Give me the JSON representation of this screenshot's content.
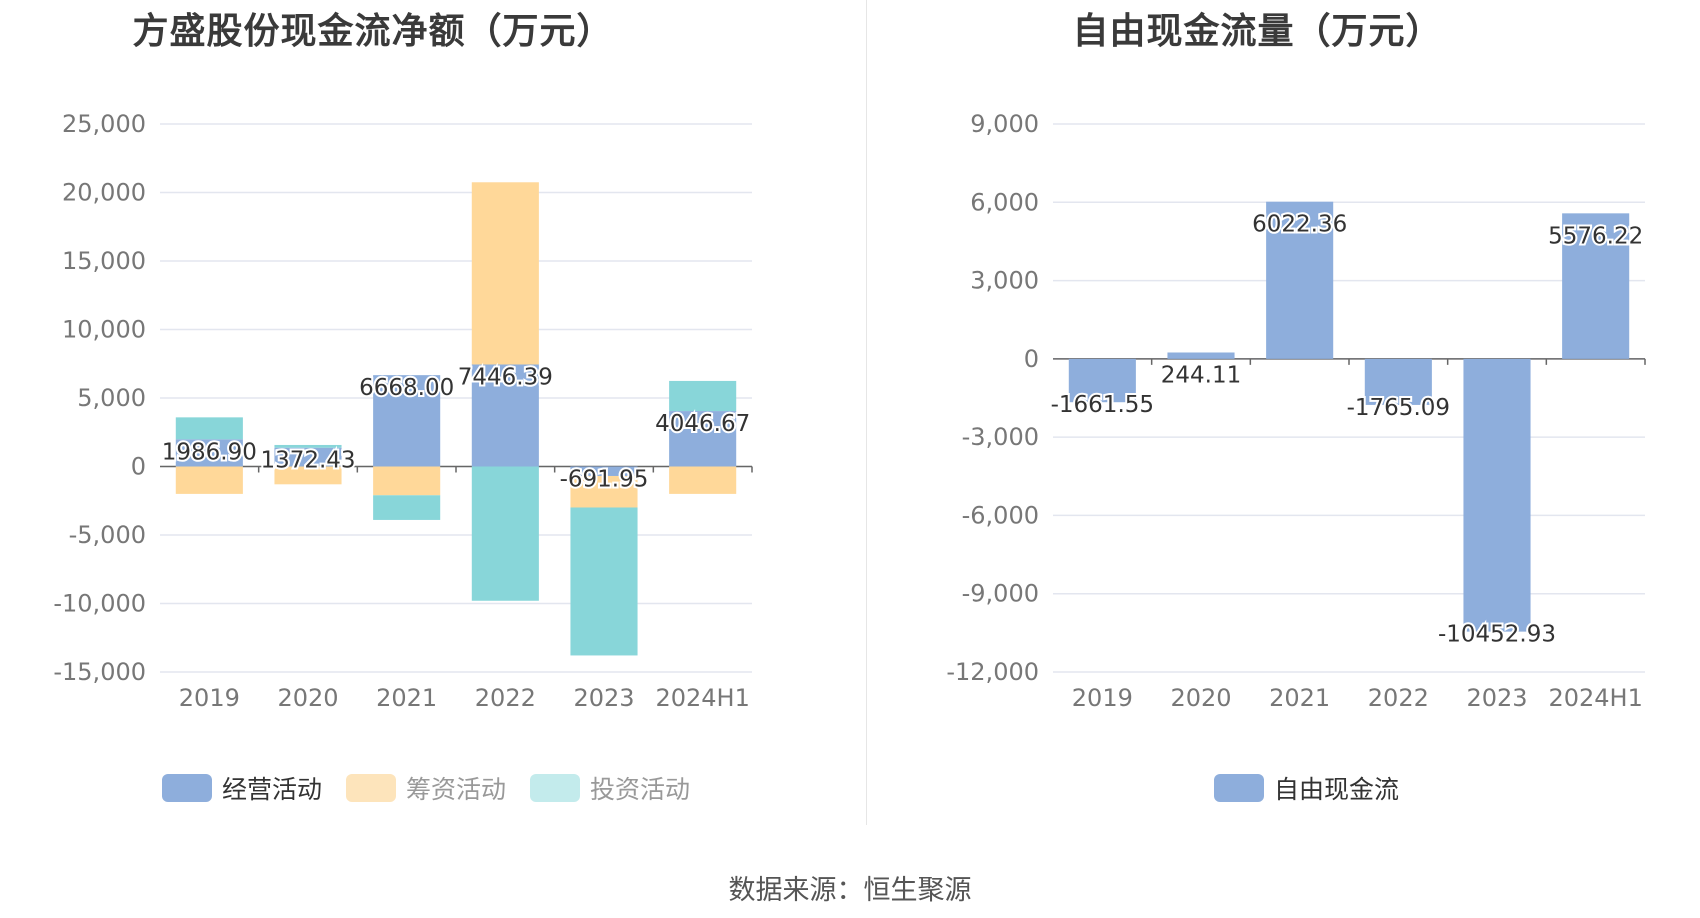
{
  "source_label": "数据来源：恒生聚源",
  "colors": {
    "operating": "#8eaedc",
    "financing": "#ffd899",
    "investing": "#88d6d9",
    "investing_legend": "#c3ebec",
    "financing_legend": "#fde4bb",
    "fcf": "#8eaedc",
    "grid": "#e3e6ef",
    "axis_text": "#777777"
  },
  "chart_data": [
    {
      "type": "bar",
      "stacked": true,
      "title": "方盛股份现金流净额（万元）",
      "categories": [
        "2019",
        "2020",
        "2021",
        "2022",
        "2023",
        "2024H1"
      ],
      "ylim": [
        -15000,
        25000
      ],
      "yticks": [
        25000,
        20000,
        15000,
        10000,
        5000,
        0,
        -5000,
        -10000,
        -15000
      ],
      "ytick_labels": [
        "25,000",
        "20,000",
        "15,000",
        "10,000",
        "5,000",
        "0",
        "-5,000",
        "-10,000",
        "-15,000"
      ],
      "series": [
        {
          "name": "经营活动",
          "key": "operating",
          "values": [
            1986.9,
            1372.43,
            6668.0,
            7446.39,
            -691.95,
            4046.67
          ],
          "data_labels": [
            "1986.90",
            "1372.43",
            "6668.00",
            "7446.39",
            "-691.95",
            "4046.67"
          ]
        },
        {
          "name": "筹资活动",
          "key": "financing",
          "values": [
            -2000,
            -1300,
            -2100,
            13300,
            -2300,
            -2000
          ]
        },
        {
          "name": "投资活动",
          "key": "investing",
          "values": [
            1600,
            200,
            -1800,
            -9800,
            -10800,
            2200
          ]
        }
      ],
      "legend": [
        "经营活动",
        "筹资活动",
        "投资活动"
      ],
      "legend_position": "bottom"
    },
    {
      "type": "bar",
      "title": "自由现金流量（万元）",
      "categories": [
        "2019",
        "2020",
        "2021",
        "2022",
        "2023",
        "2024H1"
      ],
      "ylim": [
        -12000,
        9000
      ],
      "yticks": [
        9000,
        6000,
        3000,
        0,
        -3000,
        -6000,
        -9000,
        -12000
      ],
      "ytick_labels": [
        "9,000",
        "6,000",
        "3,000",
        "0",
        "-3,000",
        "-6,000",
        "-9,000",
        "-12,000"
      ],
      "series": [
        {
          "name": "自由现金流",
          "key": "fcf",
          "values": [
            -1661.55,
            244.11,
            6022.36,
            -1765.09,
            -10452.93,
            5576.22
          ],
          "data_labels": [
            "-1661.55",
            "244.11",
            "6022.36",
            "-1765.09",
            "-10452.93",
            "5576.22"
          ]
        }
      ],
      "legend": [
        "自由现金流"
      ],
      "legend_position": "bottom"
    }
  ]
}
